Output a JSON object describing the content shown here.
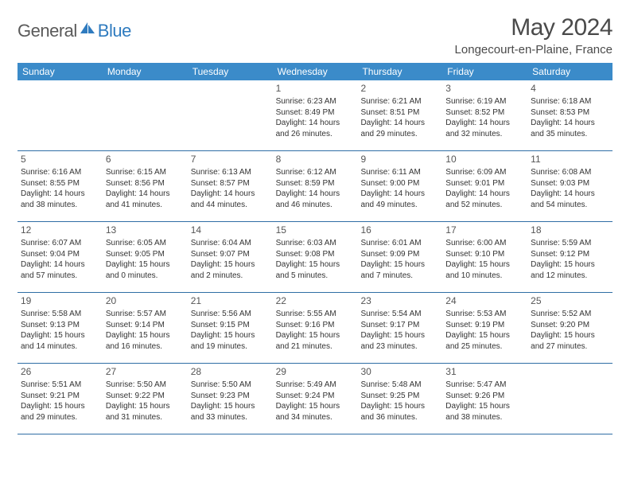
{
  "logo": {
    "text1": "General",
    "text2": "Blue"
  },
  "title": "May 2024",
  "location": "Longecourt-en-Plaine, France",
  "colors": {
    "header_bg": "#3b8bc9",
    "row_border": "#2f6ea5",
    "logo_gray": "#5a5a5a",
    "logo_blue": "#2f7bbf",
    "text": "#333333"
  },
  "weekdays": [
    "Sunday",
    "Monday",
    "Tuesday",
    "Wednesday",
    "Thursday",
    "Friday",
    "Saturday"
  ],
  "weeks": [
    [
      null,
      null,
      null,
      {
        "n": "1",
        "sr": "6:23 AM",
        "ss": "8:49 PM",
        "dl": "14 hours and 26 minutes."
      },
      {
        "n": "2",
        "sr": "6:21 AM",
        "ss": "8:51 PM",
        "dl": "14 hours and 29 minutes."
      },
      {
        "n": "3",
        "sr": "6:19 AM",
        "ss": "8:52 PM",
        "dl": "14 hours and 32 minutes."
      },
      {
        "n": "4",
        "sr": "6:18 AM",
        "ss": "8:53 PM",
        "dl": "14 hours and 35 minutes."
      }
    ],
    [
      {
        "n": "5",
        "sr": "6:16 AM",
        "ss": "8:55 PM",
        "dl": "14 hours and 38 minutes."
      },
      {
        "n": "6",
        "sr": "6:15 AM",
        "ss": "8:56 PM",
        "dl": "14 hours and 41 minutes."
      },
      {
        "n": "7",
        "sr": "6:13 AM",
        "ss": "8:57 PM",
        "dl": "14 hours and 44 minutes."
      },
      {
        "n": "8",
        "sr": "6:12 AM",
        "ss": "8:59 PM",
        "dl": "14 hours and 46 minutes."
      },
      {
        "n": "9",
        "sr": "6:11 AM",
        "ss": "9:00 PM",
        "dl": "14 hours and 49 minutes."
      },
      {
        "n": "10",
        "sr": "6:09 AM",
        "ss": "9:01 PM",
        "dl": "14 hours and 52 minutes."
      },
      {
        "n": "11",
        "sr": "6:08 AM",
        "ss": "9:03 PM",
        "dl": "14 hours and 54 minutes."
      }
    ],
    [
      {
        "n": "12",
        "sr": "6:07 AM",
        "ss": "9:04 PM",
        "dl": "14 hours and 57 minutes."
      },
      {
        "n": "13",
        "sr": "6:05 AM",
        "ss": "9:05 PM",
        "dl": "15 hours and 0 minutes."
      },
      {
        "n": "14",
        "sr": "6:04 AM",
        "ss": "9:07 PM",
        "dl": "15 hours and 2 minutes."
      },
      {
        "n": "15",
        "sr": "6:03 AM",
        "ss": "9:08 PM",
        "dl": "15 hours and 5 minutes."
      },
      {
        "n": "16",
        "sr": "6:01 AM",
        "ss": "9:09 PM",
        "dl": "15 hours and 7 minutes."
      },
      {
        "n": "17",
        "sr": "6:00 AM",
        "ss": "9:10 PM",
        "dl": "15 hours and 10 minutes."
      },
      {
        "n": "18",
        "sr": "5:59 AM",
        "ss": "9:12 PM",
        "dl": "15 hours and 12 minutes."
      }
    ],
    [
      {
        "n": "19",
        "sr": "5:58 AM",
        "ss": "9:13 PM",
        "dl": "15 hours and 14 minutes."
      },
      {
        "n": "20",
        "sr": "5:57 AM",
        "ss": "9:14 PM",
        "dl": "15 hours and 16 minutes."
      },
      {
        "n": "21",
        "sr": "5:56 AM",
        "ss": "9:15 PM",
        "dl": "15 hours and 19 minutes."
      },
      {
        "n": "22",
        "sr": "5:55 AM",
        "ss": "9:16 PM",
        "dl": "15 hours and 21 minutes."
      },
      {
        "n": "23",
        "sr": "5:54 AM",
        "ss": "9:17 PM",
        "dl": "15 hours and 23 minutes."
      },
      {
        "n": "24",
        "sr": "5:53 AM",
        "ss": "9:19 PM",
        "dl": "15 hours and 25 minutes."
      },
      {
        "n": "25",
        "sr": "5:52 AM",
        "ss": "9:20 PM",
        "dl": "15 hours and 27 minutes."
      }
    ],
    [
      {
        "n": "26",
        "sr": "5:51 AM",
        "ss": "9:21 PM",
        "dl": "15 hours and 29 minutes."
      },
      {
        "n": "27",
        "sr": "5:50 AM",
        "ss": "9:22 PM",
        "dl": "15 hours and 31 minutes."
      },
      {
        "n": "28",
        "sr": "5:50 AM",
        "ss": "9:23 PM",
        "dl": "15 hours and 33 minutes."
      },
      {
        "n": "29",
        "sr": "5:49 AM",
        "ss": "9:24 PM",
        "dl": "15 hours and 34 minutes."
      },
      {
        "n": "30",
        "sr": "5:48 AM",
        "ss": "9:25 PM",
        "dl": "15 hours and 36 minutes."
      },
      {
        "n": "31",
        "sr": "5:47 AM",
        "ss": "9:26 PM",
        "dl": "15 hours and 38 minutes."
      },
      null
    ]
  ],
  "labels": {
    "sunrise": "Sunrise: ",
    "sunset": "Sunset: ",
    "daylight": "Daylight: "
  }
}
